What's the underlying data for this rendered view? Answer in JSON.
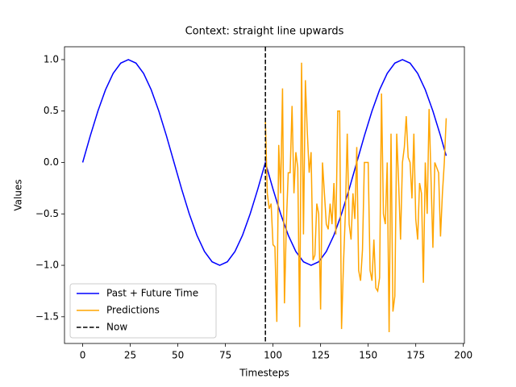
{
  "chart_data": {
    "type": "line",
    "title": "Context: straight line upwards",
    "x_label": "Timesteps",
    "y_label": "Values",
    "xlim": [
      -9.55,
      200.55
    ],
    "ylim": [
      -1.76,
      1.125
    ],
    "xticks": [
      0,
      25,
      50,
      75,
      100,
      125,
      150,
      175,
      200
    ],
    "yticks": [
      {
        "value": -1.5,
        "label": "−1.5"
      },
      {
        "value": -1.0,
        "label": "−1.0"
      },
      {
        "value": -0.5,
        "label": "−0.5"
      },
      {
        "value": 0.0,
        "label": "0.0"
      },
      0.5,
      {
        "value": 1.0,
        "label": "1.0"
      }
    ],
    "legend": "lower left",
    "series": [
      {
        "name": "Past + Future Time",
        "color": "#0000ff",
        "x": [
          0,
          4,
          8,
          12,
          16,
          20,
          24,
          28,
          32,
          36,
          40,
          44,
          48,
          52,
          56,
          60,
          64,
          68,
          72,
          76,
          80,
          84,
          88,
          92,
          96,
          100,
          104,
          108,
          112,
          116,
          120,
          124,
          128,
          132,
          136,
          140,
          144,
          148,
          152,
          156,
          160,
          164,
          168,
          172,
          176,
          180,
          184,
          188,
          191
        ],
        "values": [
          0,
          0.259,
          0.5,
          0.707,
          0.866,
          0.966,
          1,
          0.966,
          0.866,
          0.707,
          0.5,
          0.259,
          0,
          -0.259,
          -0.5,
          -0.707,
          -0.866,
          -0.966,
          -1,
          -0.966,
          -0.866,
          -0.707,
          -0.5,
          -0.259,
          0,
          -0.259,
          -0.5,
          -0.707,
          -0.866,
          -0.966,
          -1,
          -0.966,
          -0.866,
          -0.707,
          -0.5,
          -0.259,
          0,
          0.259,
          0.5,
          0.707,
          0.866,
          0.966,
          1,
          0.966,
          0.866,
          0.707,
          0.5,
          0.259,
          0.065
        ]
      },
      {
        "name": "Predictions",
        "color": "#ffa500",
        "x": [
          96,
          97,
          98,
          99,
          100,
          101,
          102,
          103,
          104,
          105,
          106,
          107,
          108,
          109,
          110,
          111,
          112,
          113,
          114,
          115,
          116,
          117,
          118,
          119,
          120,
          121,
          122,
          123,
          124,
          125,
          126,
          127,
          128,
          129,
          130,
          131,
          132,
          133,
          134,
          135,
          136,
          137,
          138,
          139,
          140,
          141,
          142,
          143,
          144,
          145,
          146,
          147,
          148,
          149,
          150,
          151,
          152,
          153,
          154,
          155,
          156,
          157,
          158,
          159,
          160,
          161,
          162,
          163,
          164,
          165,
          166,
          167,
          168,
          169,
          170,
          171,
          172,
          173,
          174,
          175,
          176,
          177,
          178,
          179,
          180,
          181,
          182,
          183,
          184,
          185,
          186,
          187,
          188,
          189,
          190,
          191
        ],
        "values": [
          0.4,
          -0.3,
          -0.45,
          -0.4,
          -0.8,
          -0.82,
          -1.55,
          0.17,
          -0.3,
          0.72,
          -1.37,
          -0.6,
          -0.1,
          -0.1,
          0.55,
          -0.3,
          0.1,
          -0.05,
          -1.6,
          0.97,
          -0.7,
          0.8,
          0.3,
          -0.1,
          0.1,
          -0.95,
          -0.9,
          -0.4,
          -0.5,
          -1.43,
          0.0,
          -0.3,
          -0.6,
          -0.65,
          -0.4,
          -0.6,
          -0.2,
          -0.7,
          0.5,
          0.5,
          -1.62,
          -1.0,
          -0.5,
          0.28,
          -0.6,
          -0.75,
          -0.3,
          -0.55,
          0.15,
          -1.05,
          -1.15,
          -0.85,
          0.0,
          0.0,
          0.0,
          -1.05,
          -1.15,
          -0.75,
          -1.22,
          -1.25,
          -1.12,
          0.67,
          -0.5,
          -0.6,
          0.0,
          -1.65,
          0.28,
          -1.45,
          -1.3,
          0.28,
          -0.2,
          -0.75,
          0.0,
          0.15,
          0.45,
          0.05,
          0.0,
          -0.35,
          0.28,
          -0.55,
          -0.75,
          -0.2,
          -0.3,
          -1.17,
          0.0,
          -0.5,
          0.52,
          -0.15,
          -0.83,
          0.0,
          -0.05,
          -0.1,
          -0.72,
          -0.3,
          0.0,
          0.43
        ]
      }
    ],
    "vline": {
      "name": "Now",
      "x": 96,
      "color": "#000000"
    }
  }
}
